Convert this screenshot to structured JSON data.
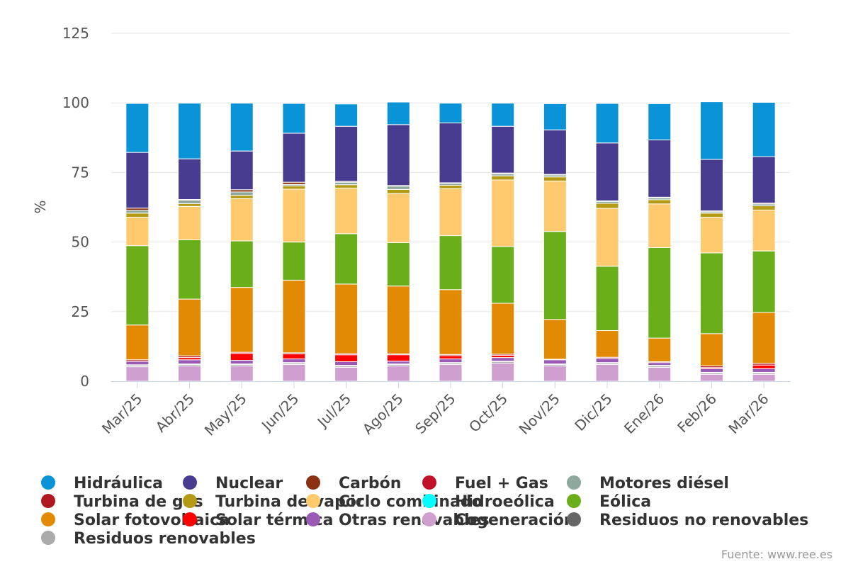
{
  "chart_data": {
    "type": "bar",
    "stacked": true,
    "title": "",
    "xlabel": "",
    "ylabel": "%",
    "ylim": [
      0,
      125
    ],
    "yticks": [
      0,
      25,
      50,
      75,
      100,
      125
    ],
    "grid": true,
    "legend_position": "bottom",
    "categories": [
      "Mar/25",
      "Abr/25",
      "May/25",
      "Jun/25",
      "Jul/25",
      "Ago/25",
      "Sep/25",
      "Oct/25",
      "Nov/25",
      "Dic/25",
      "Ene/26",
      "Feb/26",
      "Mar/26"
    ],
    "series": [
      {
        "name": "Cogeneración",
        "color": "#CFA0CF",
        "values": [
          5.2,
          5.5,
          5.5,
          6.0,
          5.0,
          5.5,
          6.0,
          6.5,
          5.5,
          6.0,
          5.0,
          2.5,
          2.5
        ]
      },
      {
        "name": "Residuos no renovables",
        "color": "#666666",
        "values": [
          0.4,
          0.4,
          0.4,
          0.4,
          0.4,
          0.4,
          0.4,
          0.4,
          0.4,
          0.4,
          0.4,
          0.4,
          0.4
        ]
      },
      {
        "name": "Residuos renovables",
        "color": "#AAAAAA",
        "values": [
          0.3,
          0.3,
          0.3,
          0.3,
          0.3,
          0.3,
          0.3,
          0.3,
          0.3,
          0.3,
          0.3,
          0.3,
          0.3
        ]
      },
      {
        "name": "Otras renovables",
        "color": "#9B59B6",
        "values": [
          1.2,
          1.5,
          1.3,
          1.3,
          1.3,
          1.0,
          1.3,
          1.3,
          1.5,
          1.5,
          1.0,
          1.3,
          1.3
        ]
      },
      {
        "name": "Solar térmica",
        "color": "#FF0000",
        "values": [
          0.0,
          0.8,
          2.5,
          1.8,
          2.5,
          2.3,
          1.2,
          0.8,
          0.0,
          0.0,
          0.0,
          0.4,
          1.3
        ]
      },
      {
        "name": "Turbina de gas",
        "color": "#B01820",
        "values": [
          0.6,
          0.6,
          0.4,
          0.4,
          0.4,
          0.3,
          0.4,
          0.4,
          0.2,
          0.4,
          0.3,
          0.6,
          0.6
        ]
      },
      {
        "name": "Fuel + Gas",
        "color": "#C0102A",
        "values": [
          0.0,
          0.0,
          0.0,
          0.0,
          0.0,
          0.0,
          0.0,
          0.0,
          0.0,
          0.0,
          0.0,
          0.0,
          0.0
        ]
      },
      {
        "name": "Solar fotovoltaica",
        "color": "#E38A05",
        "values": [
          12.5,
          20.4,
          23.3,
          26.1,
          25.0,
          24.4,
          23.3,
          18.3,
          14.3,
          9.6,
          8.5,
          11.6,
          18.3
        ]
      },
      {
        "name": "Eólica",
        "color": "#6AAF1A",
        "values": [
          28.5,
          21.3,
          16.7,
          13.7,
          18.1,
          15.6,
          19.4,
          20.4,
          31.6,
          23.1,
          32.5,
          29.0,
          22.1
        ]
      },
      {
        "name": "Hidroeólica",
        "color": "#00FFFF",
        "values": [
          0.0,
          0.0,
          0.0,
          0.0,
          0.0,
          0.0,
          0.0,
          0.0,
          0.0,
          0.0,
          0.0,
          0.0,
          0.0
        ]
      },
      {
        "name": "Ciclo combinado",
        "color": "#FFC96E",
        "values": [
          10.2,
          12.0,
          15.2,
          19.0,
          16.4,
          17.6,
          16.9,
          23.9,
          18.1,
          20.8,
          15.7,
          12.8,
          14.7
        ]
      },
      {
        "name": "Turbina de vapor",
        "color": "#B59B14",
        "values": [
          1.5,
          1.0,
          1.2,
          1.2,
          1.2,
          1.5,
          1.2,
          1.5,
          1.5,
          1.8,
          1.5,
          1.5,
          1.5
        ]
      },
      {
        "name": "Motores diésel",
        "color": "#8FA89E",
        "values": [
          1.0,
          1.2,
          1.2,
          0.5,
          0.9,
          1.2,
          0.7,
          0.7,
          0.7,
          0.7,
          0.7,
          0.5,
          0.7
        ]
      },
      {
        "name": "Carbón",
        "color": "#8B3010",
        "values": [
          0.8,
          0.3,
          0.8,
          0.8,
          0.3,
          0.2,
          0.2,
          0.3,
          0.2,
          0.2,
          0.2,
          0.3,
          0.3
        ]
      },
      {
        "name": "Nuclear",
        "color": "#473C8F",
        "values": [
          20.0,
          14.6,
          13.9,
          17.6,
          19.8,
          21.9,
          21.5,
          16.8,
          16.0,
          20.8,
          20.6,
          18.5,
          16.7
        ]
      },
      {
        "name": "Hidráulica",
        "color": "#0A93D6",
        "values": [
          17.6,
          20.0,
          17.2,
          10.7,
          8.0,
          8.1,
          7.1,
          8.3,
          9.4,
          14.2,
          13.0,
          20.7,
          19.5
        ]
      }
    ],
    "legend_order": [
      "Hidráulica",
      "Nuclear",
      "Carbón",
      "Fuel + Gas",
      "Motores diésel",
      "Turbina de gas",
      "Turbina de vapor",
      "Ciclo combinado",
      "Hidroeólica",
      "Eólica",
      "Solar fotovoltaica",
      "Solar térmica",
      "Otras renovables",
      "Cogeneración",
      "Residuos no renovables",
      "Residuos renovables"
    ],
    "source": "Fuente: www.ree.es"
  }
}
